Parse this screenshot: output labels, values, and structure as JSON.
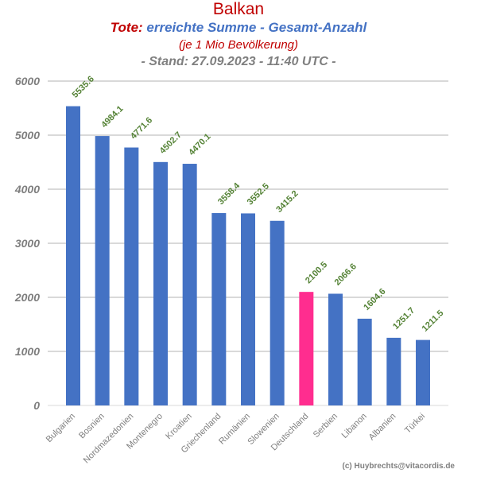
{
  "title": {
    "line1": "Balkan",
    "line2_prefix": "Tote:",
    "line2_main": " erreichte Summe - Gesamt-Anzahl",
    "line3": "(je 1 Mio Bevölkerung)",
    "line4": "- Stand: 27.09.2023 - 11:40 UTC -"
  },
  "credit": "(c) Huybrechts@vitacordis.de",
  "colors": {
    "bar": "#4472c4",
    "highlight": "#ff2d8f",
    "label": "#548235",
    "title_red": "#c00000",
    "title_blue": "#4472c4",
    "grid": "#d9d9d9",
    "axis_text": "#7f7f7f"
  },
  "chart_data": {
    "type": "bar",
    "title": "Balkan",
    "categories": [
      "Bulgarien",
      "Bosnien",
      "Nordmazedonien",
      "Montenegro",
      "Kroatien",
      "Griechenland",
      "Rumänien",
      "Slowenien",
      "Deutschland",
      "Serbien",
      "Libanon",
      "Albanien",
      "Türkei"
    ],
    "values": [
      5535.6,
      4984.1,
      4771.6,
      4502.7,
      4470.1,
      3558.4,
      3552.5,
      3415.2,
      2100.5,
      2066.6,
      1604.6,
      1251.7,
      1211.5
    ],
    "highlight": "Deutschland",
    "ylim": [
      0,
      6000
    ],
    "yticks": [
      0,
      1000,
      2000,
      3000,
      4000,
      5000,
      6000
    ],
    "grid": true,
    "xlabel": "",
    "ylabel": ""
  }
}
